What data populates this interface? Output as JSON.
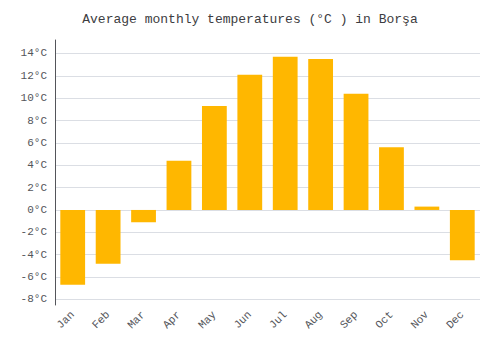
{
  "chart_data": {
    "type": "bar",
    "title": "Average monthly temperatures (°C ) in Borşa",
    "categories": [
      "Jan",
      "Feb",
      "Mar",
      "Apr",
      "May",
      "Jun",
      "Jul",
      "Aug",
      "Sep",
      "Oct",
      "Nov",
      "Dec"
    ],
    "values": [
      -6.7,
      -4.8,
      -1.1,
      4.4,
      9.3,
      12.1,
      13.7,
      13.5,
      10.4,
      5.6,
      0.3,
      -4.5
    ],
    "color": "#FFB700",
    "ylim": [
      -8.5,
      15.2
    ],
    "yticks": [
      {
        "value": 14,
        "label": "14°C"
      },
      {
        "value": 12,
        "label": "12°C"
      },
      {
        "value": 10,
        "label": "10°C"
      },
      {
        "value": 8,
        "label": "8°C"
      },
      {
        "value": 6,
        "label": "6°C"
      },
      {
        "value": 4,
        "label": "4°C"
      },
      {
        "value": 2,
        "label": "2°C"
      },
      {
        "value": 0,
        "label": "0°C"
      },
      {
        "value": -2,
        "label": "-2°C"
      },
      {
        "value": -4,
        "label": "-4°C"
      },
      {
        "value": -6,
        "label": "-6°C"
      },
      {
        "value": -8,
        "label": "-8°C"
      }
    ],
    "grid": true
  }
}
